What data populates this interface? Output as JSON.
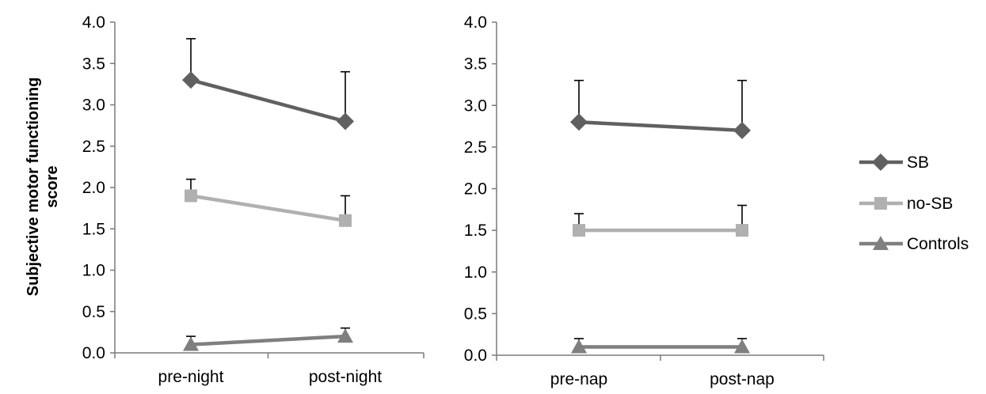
{
  "y_axis_label_line1": "Subjective motor functioning",
  "y_axis_label_line2": "score",
  "legend": [
    {
      "name": "SB",
      "color": "#606060",
      "marker": "diamond"
    },
    {
      "name": "no-SB",
      "color": "#b0b0b0",
      "marker": "square"
    },
    {
      "name": "Controls",
      "color": "#7f7f7f",
      "marker": "triangle"
    }
  ],
  "chart_data": [
    {
      "type": "line",
      "categories": [
        "pre-night",
        "post-night"
      ],
      "ylim": [
        0.0,
        4.0
      ],
      "yticks": [
        "0.0",
        "0.5",
        "1.0",
        "1.5",
        "2.0",
        "2.5",
        "3.0",
        "3.5",
        "4.0"
      ],
      "grid": false,
      "series": [
        {
          "name": "SB",
          "values": [
            3.3,
            2.8
          ],
          "error_upper": [
            3.8,
            3.4
          ],
          "color": "#606060",
          "marker": "diamond"
        },
        {
          "name": "no-SB",
          "values": [
            1.9,
            1.6
          ],
          "error_upper": [
            2.1,
            1.9
          ],
          "color": "#b0b0b0",
          "marker": "square"
        },
        {
          "name": "Controls",
          "values": [
            0.1,
            0.2
          ],
          "error_upper": [
            0.2,
            0.3
          ],
          "color": "#7f7f7f",
          "marker": "triangle"
        }
      ]
    },
    {
      "type": "line",
      "categories": [
        "pre-nap",
        "post-nap"
      ],
      "ylim": [
        0.0,
        4.0
      ],
      "yticks": [
        "0.0",
        "0.5",
        "1.0",
        "1.5",
        "2.0",
        "2.5",
        "3.0",
        "3.5",
        "4.0"
      ],
      "grid": false,
      "legend_position": "right",
      "series": [
        {
          "name": "SB",
          "values": [
            2.8,
            2.7
          ],
          "error_upper": [
            3.3,
            3.3
          ],
          "color": "#606060",
          "marker": "diamond"
        },
        {
          "name": "no-SB",
          "values": [
            1.5,
            1.5
          ],
          "error_upper": [
            1.7,
            1.8
          ],
          "color": "#b0b0b0",
          "marker": "square"
        },
        {
          "name": "Controls",
          "values": [
            0.1,
            0.1
          ],
          "error_upper": [
            0.2,
            0.2
          ],
          "color": "#7f7f7f",
          "marker": "triangle"
        }
      ]
    }
  ]
}
